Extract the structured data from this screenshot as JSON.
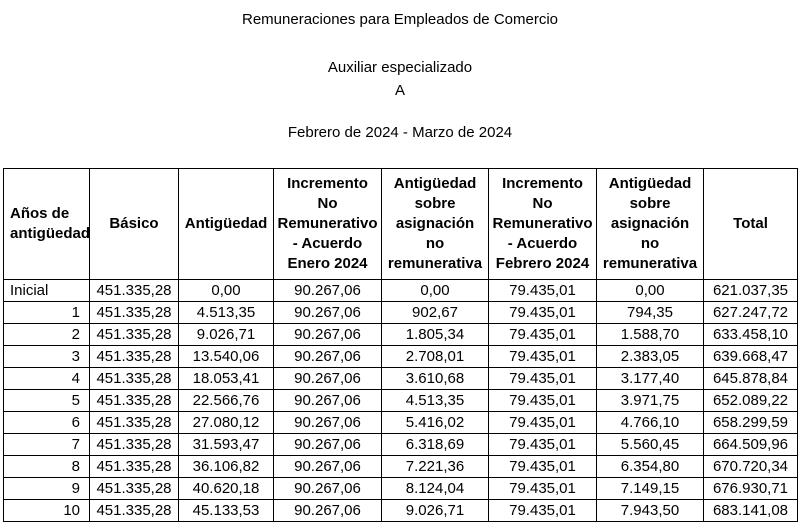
{
  "page": {
    "title": "Remuneraciones para Empleados de Comercio",
    "subtitle": "Auxiliar especializado",
    "category": "A",
    "period": "Febrero de 2024 - Marzo de 2024"
  },
  "table": {
    "headers": [
      "Años de\nantigüedad",
      "Básico",
      "Antigüedad",
      "Incremento\nNo\nRemunerativo\n- Acuerdo\nEnero 2024",
      "Antigüedad\nsobre\nasignación\nno\nremunerativa",
      "Incremento\nNo\nRemunerativo\n- Acuerdo\nFebrero 2024",
      "Antigüedad\nsobre\nasignación\nno\nremunerativa",
      "Total"
    ],
    "rows": [
      [
        "Inicial",
        "451.335,28",
        "0,00",
        "90.267,06",
        "0,00",
        "79.435,01",
        "0,00",
        "621.037,35"
      ],
      [
        "1",
        "451.335,28",
        "4.513,35",
        "90.267,06",
        "902,67",
        "79.435,01",
        "794,35",
        "627.247,72"
      ],
      [
        "2",
        "451.335,28",
        "9.026,71",
        "90.267,06",
        "1.805,34",
        "79.435,01",
        "1.588,70",
        "633.458,10"
      ],
      [
        "3",
        "451.335,28",
        "13.540,06",
        "90.267,06",
        "2.708,01",
        "79.435,01",
        "2.383,05",
        "639.668,47"
      ],
      [
        "4",
        "451.335,28",
        "18.053,41",
        "90.267,06",
        "3.610,68",
        "79.435,01",
        "3.177,40",
        "645.878,84"
      ],
      [
        "5",
        "451.335,28",
        "22.566,76",
        "90.267,06",
        "4.513,35",
        "79.435,01",
        "3.971,75",
        "652.089,22"
      ],
      [
        "6",
        "451.335,28",
        "27.080,12",
        "90.267,06",
        "5.416,02",
        "79.435,01",
        "4.766,10",
        "658.299,59"
      ],
      [
        "7",
        "451.335,28",
        "31.593,47",
        "90.267,06",
        "6.318,69",
        "79.435,01",
        "5.560,45",
        "664.509,96"
      ],
      [
        "8",
        "451.335,28",
        "36.106,82",
        "90.267,06",
        "7.221,36",
        "79.435,01",
        "6.354,80",
        "670.720,34"
      ],
      [
        "9",
        "451.335,28",
        "40.620,18",
        "90.267,06",
        "8.124,04",
        "79.435,01",
        "7.149,15",
        "676.930,71"
      ],
      [
        "10",
        "451.335,28",
        "45.133,53",
        "90.267,06",
        "9.026,71",
        "79.435,01",
        "7.943,50",
        "683.141,08"
      ]
    ]
  }
}
